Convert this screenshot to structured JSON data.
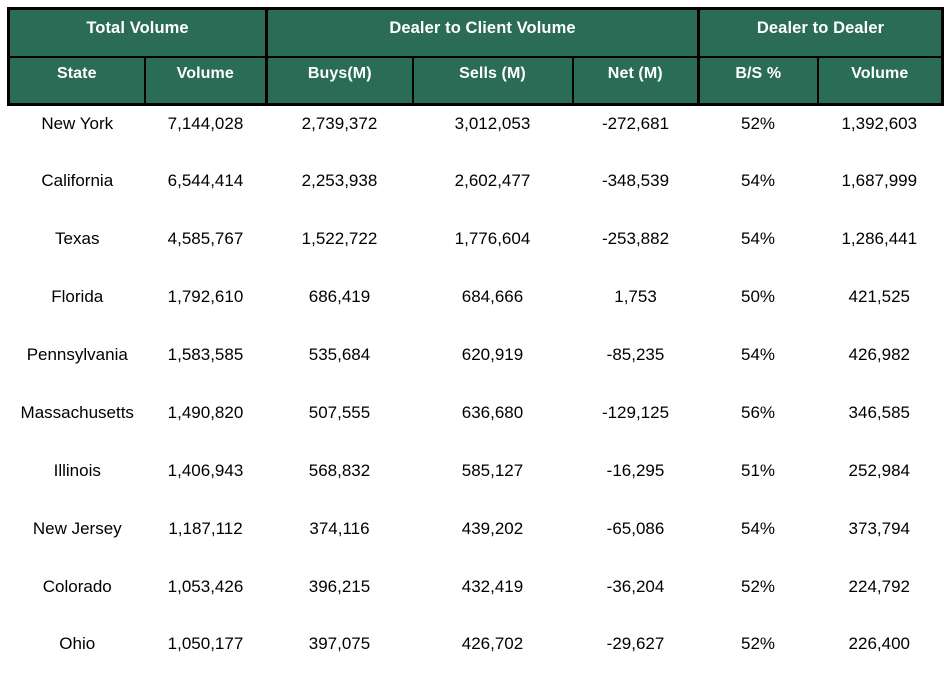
{
  "colors": {
    "header_bg": "#2A6C55",
    "header_text": "#FFFFFF",
    "body_text": "#000000",
    "border": "#000000",
    "page_bg": "#FFFFFF"
  },
  "table": {
    "group_headers": [
      {
        "label": "Total Volume",
        "colspan": 2
      },
      {
        "label": "Dealer to Client Volume",
        "colspan": 3
      },
      {
        "label": "Dealer to Dealer",
        "colspan": 2
      }
    ],
    "column_headers": [
      "State",
      "Volume",
      "Buys(M)",
      "Sells (M)",
      "Net (M)",
      "B/S %",
      "Volume"
    ],
    "rows": [
      [
        "New York",
        "7,144,028",
        "2,739,372",
        "3,012,053",
        "-272,681",
        "52%",
        "1,392,603"
      ],
      [
        "California",
        "6,544,414",
        "2,253,938",
        "2,602,477",
        "-348,539",
        "54%",
        "1,687,999"
      ],
      [
        "Texas",
        "4,585,767",
        "1,522,722",
        "1,776,604",
        "-253,882",
        "54%",
        "1,286,441"
      ],
      [
        "Florida",
        "1,792,610",
        "686,419",
        "684,666",
        "1,753",
        "50%",
        "421,525"
      ],
      [
        "Pennsylvania",
        "1,583,585",
        "535,684",
        "620,919",
        "-85,235",
        "54%",
        "426,982"
      ],
      [
        "Massachusetts",
        "1,490,820",
        "507,555",
        "636,680",
        "-129,125",
        "56%",
        "346,585"
      ],
      [
        "Illinois",
        "1,406,943",
        "568,832",
        "585,127",
        "-16,295",
        "51%",
        "252,984"
      ],
      [
        "New Jersey",
        "1,187,112",
        "374,116",
        "439,202",
        "-65,086",
        "54%",
        "373,794"
      ],
      [
        "Colorado",
        "1,053,426",
        "396,215",
        "432,419",
        "-36,204",
        "52%",
        "224,792"
      ],
      [
        "Ohio",
        "1,050,177",
        "397,075",
        "426,702",
        "-29,627",
        "52%",
        "226,400"
      ]
    ]
  },
  "chart_data": {
    "type": "table",
    "title": "",
    "column_groups": [
      {
        "label": "Total Volume",
        "columns": [
          "State",
          "Volume"
        ]
      },
      {
        "label": "Dealer to Client Volume",
        "columns": [
          "Buys(M)",
          "Sells (M)",
          "Net (M)"
        ]
      },
      {
        "label": "Dealer to Dealer",
        "columns": [
          "B/S %",
          "Volume"
        ]
      }
    ],
    "states": [
      "New York",
      "California",
      "Texas",
      "Florida",
      "Pennsylvania",
      "Massachusetts",
      "Illinois",
      "New Jersey",
      "Colorado",
      "Ohio"
    ],
    "total_volume": [
      7144028,
      6544414,
      4585767,
      1792610,
      1583585,
      1490820,
      1406943,
      1187112,
      1053426,
      1050177
    ],
    "dealer_to_client_buys_m": [
      2739372,
      2253938,
      1522722,
      686419,
      535684,
      507555,
      568832,
      374116,
      396215,
      397075
    ],
    "dealer_to_client_sells_m": [
      3012053,
      2602477,
      1776604,
      684666,
      620919,
      636680,
      585127,
      439202,
      432419,
      426702
    ],
    "dealer_to_client_net_m": [
      -272681,
      -348539,
      -253882,
      1753,
      -85235,
      -129125,
      -16295,
      -65086,
      -36204,
      -29627
    ],
    "dealer_to_dealer_bs_pct": [
      52,
      54,
      54,
      50,
      54,
      56,
      51,
      54,
      52,
      52
    ],
    "dealer_to_dealer_volume": [
      1392603,
      1687999,
      1286441,
      421525,
      426982,
      346585,
      252984,
      373794,
      224792,
      226400
    ],
    "layout_hints": {
      "header_fill": "#2A6C55",
      "header_font_color": "#FFFFFF",
      "gridlines": "headers-only",
      "number_alignment": "center"
    }
  }
}
